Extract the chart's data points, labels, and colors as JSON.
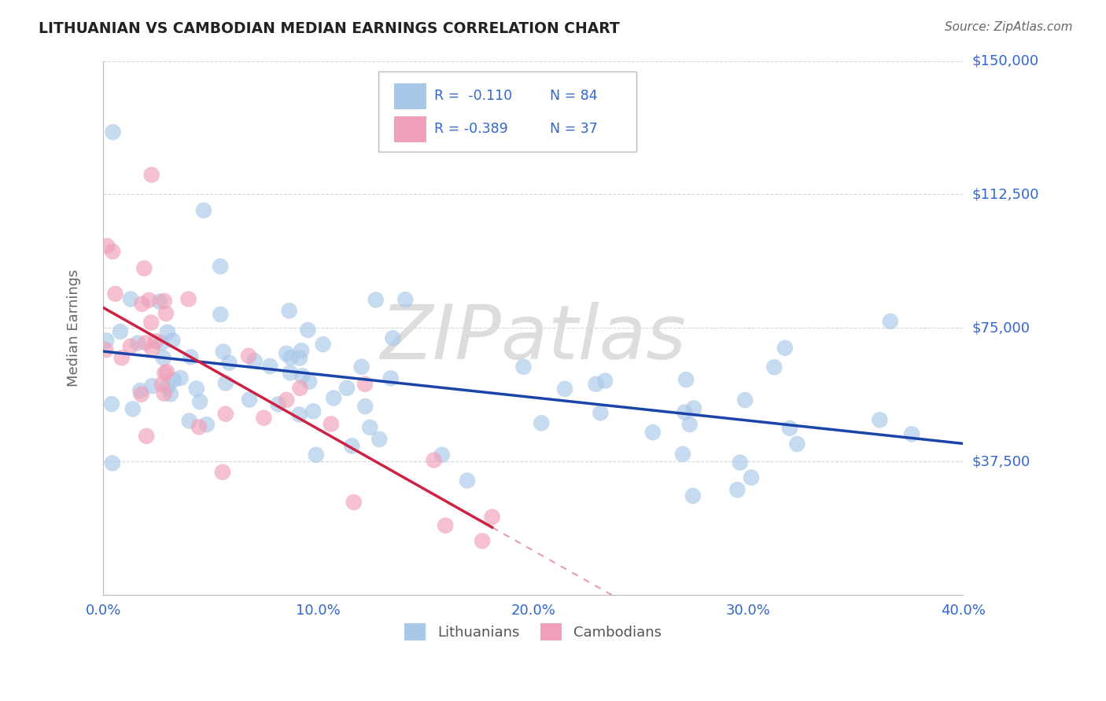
{
  "title": "LITHUANIAN VS CAMBODIAN MEDIAN EARNINGS CORRELATION CHART",
  "source": "Source: ZipAtlas.com",
  "ylabel": "Median Earnings",
  "xlim": [
    0.0,
    0.4
  ],
  "ylim": [
    0,
    150000
  ],
  "yticks": [
    0,
    37500,
    75000,
    112500,
    150000
  ],
  "ytick_labels": [
    "",
    "$37,500",
    "$75,000",
    "$112,500",
    "$150,000"
  ],
  "xticks": [
    0.0,
    0.1,
    0.2,
    0.3,
    0.4
  ],
  "xtick_labels": [
    "0.0%",
    "10.0%",
    "20.0%",
    "30.0%",
    "40.0%"
  ],
  "blue_color": "#A8C8E8",
  "pink_color": "#F0A0B8",
  "blue_line_color": "#1A44AA",
  "pink_line_color": "#CC2244",
  "legend_R_blue": "R =  -0.110",
  "legend_N_blue": "N = 84",
  "legend_R_pink": "R = -0.389",
  "legend_N_pink": "N = 37",
  "legend_label_blue": "Lithuanians",
  "legend_label_pink": "Cambodians",
  "watermark": "ZIPatlas",
  "background_color": "#FFFFFF",
  "grid_color": "#CCCCCC",
  "axis_label_color": "#3366CC",
  "ylabel_color": "#666666",
  "title_color": "#222222"
}
